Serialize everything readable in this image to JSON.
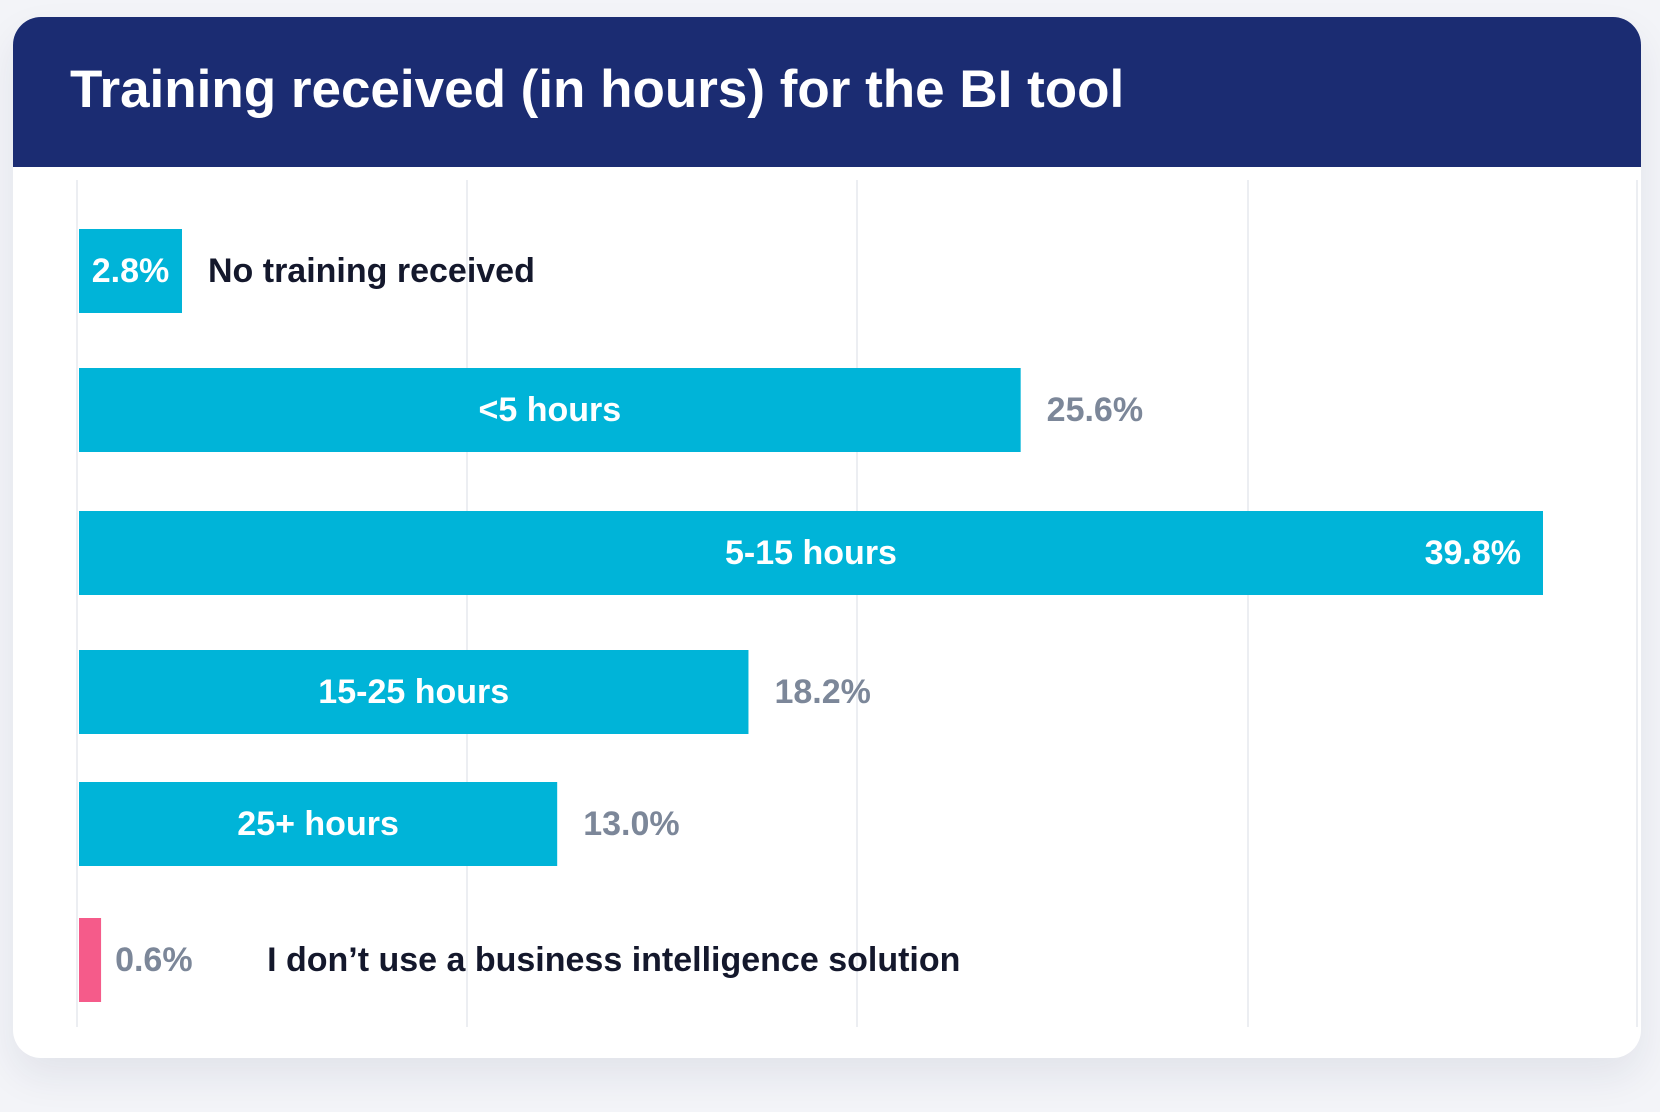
{
  "title": "Training received (in hours) for the BI tool",
  "colors": {
    "header": "#1b2c72",
    "bar": "#00b4d8",
    "bar_highlight": "#f55b8a",
    "value_outside": "#7c8799",
    "label_outside": "#14182c",
    "text_inside": "#ffffff",
    "gridline": "#eceef2"
  },
  "chart_data": {
    "type": "bar",
    "orientation": "horizontal",
    "categories": [
      "No training received",
      "<5 hours",
      "5-15 hours",
      "15-25 hours",
      "25+ hours",
      "I don’t use a business intelligence solution"
    ],
    "values": [
      2.8,
      25.6,
      39.8,
      18.2,
      13.0,
      0.6
    ],
    "value_labels": [
      "2.8%",
      "25.6%",
      "39.8%",
      "18.2%",
      "13.0%",
      "0.6%"
    ],
    "highlight_index": 5,
    "xlim": [
      0,
      40
    ],
    "grid": true
  }
}
